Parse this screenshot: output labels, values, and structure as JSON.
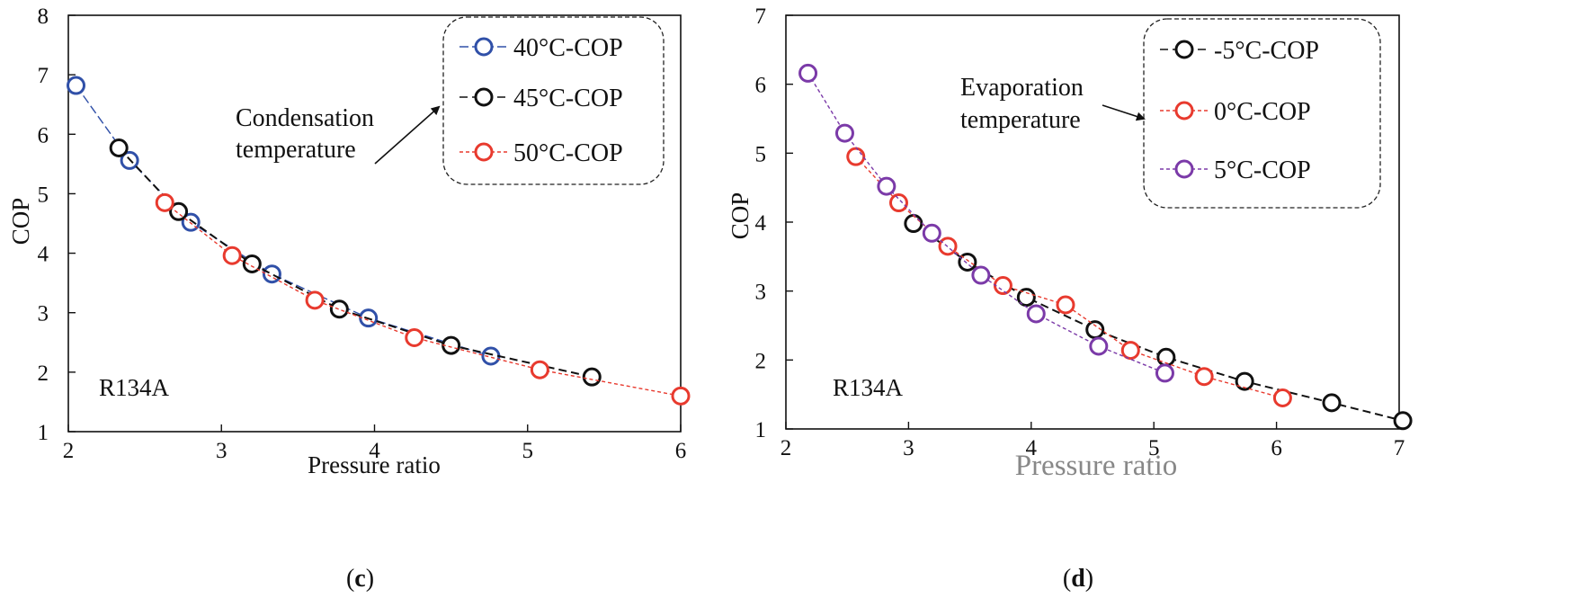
{
  "chart_data": [
    {
      "type": "line",
      "panel": "(c)",
      "panel_letter": "c",
      "xlabel": "Pressure ratio",
      "ylabel": "COP",
      "xlim": [
        2,
        6
      ],
      "ylim": [
        1,
        8
      ],
      "xticks": [
        "2",
        "3",
        "4",
        "5",
        "6"
      ],
      "yticks": [
        "1",
        "2",
        "3",
        "4",
        "5",
        "6",
        "7",
        "8"
      ],
      "refrigerant_label": "R134A",
      "annotation": [
        "Condensation",
        "temperature"
      ],
      "legend_placement": "top-right",
      "series": [
        {
          "name": "40°C-COP",
          "color": "#3050a8",
          "x": [
            2.05,
            2.4,
            2.8,
            3.33,
            3.96,
            4.76
          ],
          "y": [
            6.82,
            5.56,
            4.52,
            3.65,
            2.91,
            2.27
          ]
        },
        {
          "name": "45°C-COP",
          "color": "#111111",
          "x": [
            2.33,
            2.72,
            3.2,
            3.77,
            4.5,
            5.42
          ],
          "y": [
            5.77,
            4.7,
            3.82,
            3.06,
            2.45,
            1.92
          ]
        },
        {
          "name": "50°C-COP",
          "color": "#e83a2e",
          "x": [
            2.63,
            3.07,
            3.61,
            4.26,
            5.08,
            6.0
          ],
          "y": [
            4.85,
            3.96,
            3.21,
            2.58,
            2.04,
            1.6
          ]
        }
      ]
    },
    {
      "type": "line",
      "panel": "(d)",
      "panel_letter": "d",
      "xlabel": "Pressure ratio",
      "ylabel": "COP",
      "xlim": [
        2,
        7
      ],
      "ylim": [
        1,
        7
      ],
      "xticks": [
        "2",
        "3",
        "4",
        "5",
        "6",
        "7"
      ],
      "yticks": [
        "1",
        "2",
        "3",
        "4",
        "5",
        "6",
        "7"
      ],
      "refrigerant_label": "R134A",
      "annotation": [
        "Evaporation",
        "temperature"
      ],
      "legend_placement": "top-right",
      "series": [
        {
          "name": "-5°C-COP",
          "color": "#111111",
          "x": [
            3.04,
            3.48,
            3.96,
            4.52,
            5.1,
            5.74,
            6.45,
            7.03
          ],
          "y": [
            3.98,
            3.42,
            2.91,
            2.44,
            2.04,
            1.69,
            1.38,
            1.12
          ]
        },
        {
          "name": "0°C-COP",
          "color": "#e83a2e",
          "x": [
            2.57,
            2.92,
            3.32,
            3.77,
            4.28,
            4.81,
            5.41,
            6.05
          ],
          "y": [
            4.95,
            4.28,
            3.65,
            3.08,
            2.8,
            2.14,
            1.76,
            1.45
          ]
        },
        {
          "name": "5°C-COP",
          "color": "#7b3aa8",
          "x": [
            2.18,
            2.48,
            2.82,
            3.19,
            3.59,
            4.04,
            4.55,
            5.09
          ],
          "y": [
            6.16,
            5.29,
            4.52,
            3.84,
            3.23,
            2.67,
            2.2,
            1.81
          ]
        }
      ]
    }
  ]
}
